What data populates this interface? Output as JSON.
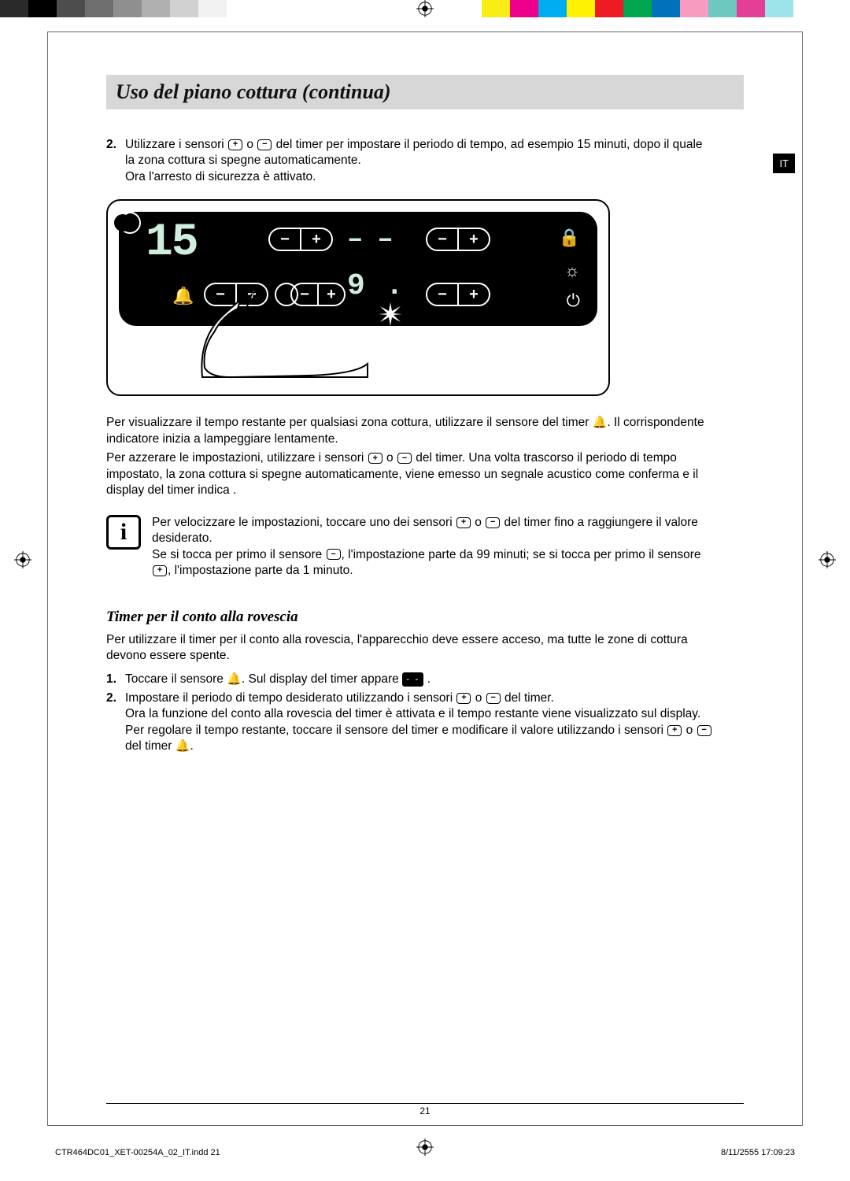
{
  "colorbar": [
    "#2a2a2a",
    "#000000",
    "#4d4d4d",
    "#6e6e6e",
    "#8f8f8f",
    "#b0b0b0",
    "#d1d1d1",
    "#f2f2f2",
    "#ffffff",
    "#ffffff",
    "#ffffff",
    "#ffffff",
    "#ffffff",
    "#ffffff",
    "#ffffff",
    "#ffffff",
    "#ffffff",
    "#f7ec13",
    "#ec008c",
    "#00adee",
    "#fff200",
    "#ed1c24",
    "#00a650",
    "#0072bc",
    "#f59cbf",
    "#6dc8bf",
    "#e43f97",
    "#9de3ea",
    "#ffffff",
    "#ffffff"
  ],
  "heading": "Uso del piano cottura (continua)",
  "lang_tab": "IT",
  "step2_num": "2.",
  "step2_text_a": "Utilizzare i sensori ",
  "step2_text_b": " o ",
  "step2_text_c": " del timer per impostare il periodo di tempo, ad esempio 15 minuti, dopo il quale la zona cottura si spegne automaticamente.",
  "step2_text_d": "Ora l'arresto di sicurezza è attivato.",
  "panel": {
    "big_display": "15",
    "mid_dash1": "–",
    "mid_dash2": "–",
    "mid_nine": "9",
    "mid_dot": "."
  },
  "para1_a": "Per visualizzare il tempo restante per qualsiasi zona cottura, utilizzare il sensore del timer ",
  "para1_b": ". Il corrispondente indicatore inizia a lampeggiare lentamente.",
  "para2_a": "Per azzerare le impostazioni, utilizzare i sensori ",
  "para2_b": " o ",
  "para2_c": " del timer. Una volta trascorso il periodo di tempo impostato, la zona cottura si spegne automaticamente, viene emesso un segnale acustico come conferma e il display del timer indica   .",
  "info1_a": "Per velocizzare le impostazioni, toccare uno dei sensori ",
  "info1_b": " o ",
  "info1_c": " del timer fino a raggiungere il valore desiderato.",
  "info2_a": "Se si tocca per primo il sensore ",
  "info2_b": ", l'impostazione parte da 99 minuti; se si tocca per primo il sensore ",
  "info2_c": ", l'impostazione parte da 1 minuto.",
  "sub_heading": "Timer per il conto alla rovescia",
  "cd_intro": "Per utilizzare il timer per il conto alla rovescia, l'apparecchio deve essere acceso, ma tutte le zone di cottura devono essere spente.",
  "cd1_num": "1.",
  "cd1_a": "Toccare il sensore ",
  "cd1_b": ". Sul display del timer appare ",
  "cd1_c": " .",
  "cd2_num": "2.",
  "cd2_a": "Impostare il periodo di tempo desiderato utilizzando i sensori ",
  "cd2_b": " o ",
  "cd2_c": " del timer.",
  "cd2_d": "Ora la funzione del conto alla rovescia del timer è attivata e il tempo restante viene visualizzato sul display.",
  "cd2_e": "Per regolare il tempo restante, toccare il sensore del timer e modificare il valore utilizzando i sensori ",
  "cd2_f": " o ",
  "cd2_g": " del timer ",
  "cd2_h": ".",
  "page_num": "21",
  "footer_left": "CTR464DC01_XET-00254A_02_IT.indd   21",
  "footer_right": "8/11/2555   17:09:23"
}
